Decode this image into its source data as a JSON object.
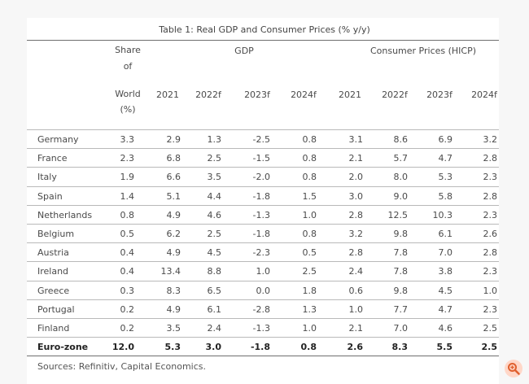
{
  "table": {
    "caption": "Table 1: Real GDP and Consumer Prices (% y/y)",
    "headers": {
      "share_line1": "Share",
      "share_line2": "of",
      "share_line3": "World",
      "share_line4": "(%)",
      "gdp_group": "GDP",
      "hicp_group": "Consumer Prices (HICP)",
      "years": [
        "2021",
        "2022f",
        "2023f",
        "2024f",
        "2021",
        "2022f",
        "2023f",
        "2024f"
      ]
    },
    "rows": [
      {
        "country": "Germany",
        "share": "3.3",
        "gdp": [
          "2.9",
          "1.3",
          "-2.5",
          "0.8"
        ],
        "hicp": [
          "3.1",
          "8.6",
          "6.9",
          "3.2"
        ]
      },
      {
        "country": "France",
        "share": "2.3",
        "gdp": [
          "6.8",
          "2.5",
          "-1.5",
          "0.8"
        ],
        "hicp": [
          "2.1",
          "5.7",
          "4.7",
          "2.8"
        ]
      },
      {
        "country": "Italy",
        "share": "1.9",
        "gdp": [
          "6.6",
          "3.5",
          "-2.0",
          "0.8"
        ],
        "hicp": [
          "2.0",
          "8.0",
          "5.3",
          "2.3"
        ]
      },
      {
        "country": "Spain",
        "share": "1.4",
        "gdp": [
          "5.1",
          "4.4",
          "-1.8",
          "1.5"
        ],
        "hicp": [
          "3.0",
          "9.0",
          "5.8",
          "2.8"
        ]
      },
      {
        "country": "Netherlands",
        "share": "0.8",
        "gdp": [
          "4.9",
          "4.6",
          "-1.3",
          "1.0"
        ],
        "hicp": [
          "2.8",
          "12.5",
          "10.3",
          "2.3"
        ]
      },
      {
        "country": "Belgium",
        "share": "0.5",
        "gdp": [
          "6.2",
          "2.5",
          "-1.8",
          "0.8"
        ],
        "hicp": [
          "3.2",
          "9.8",
          "6.1",
          "2.6"
        ]
      },
      {
        "country": "Austria",
        "share": "0.4",
        "gdp": [
          "4.9",
          "4.5",
          "-2.3",
          "0.5"
        ],
        "hicp": [
          "2.8",
          "7.8",
          "7.0",
          "2.8"
        ]
      },
      {
        "country": "Ireland",
        "share": "0.4",
        "gdp": [
          "13.4",
          "8.8",
          "1.0",
          "2.5"
        ],
        "hicp": [
          "2.4",
          "7.8",
          "3.8",
          "2.3"
        ]
      },
      {
        "country": "Greece",
        "share": "0.3",
        "gdp": [
          "8.3",
          "6.5",
          "0.0",
          "1.8"
        ],
        "hicp": [
          "0.6",
          "9.8",
          "4.5",
          "1.0"
        ]
      },
      {
        "country": "Portugal",
        "share": "0.2",
        "gdp": [
          "4.9",
          "6.1",
          "-2.8",
          "1.3"
        ],
        "hicp": [
          "1.0",
          "7.7",
          "4.7",
          "2.3"
        ]
      },
      {
        "country": "Finland",
        "share": "0.2",
        "gdp": [
          "3.5",
          "2.4",
          "-1.3",
          "1.0"
        ],
        "hicp": [
          "2.1",
          "7.0",
          "4.6",
          "2.5"
        ]
      }
    ],
    "total": {
      "country": "Euro-zone",
      "share": "12.0",
      "gdp": [
        "5.3",
        "3.0",
        "-1.8",
        "0.8"
      ],
      "hicp": [
        "2.6",
        "8.3",
        "5.5",
        "2.5"
      ]
    },
    "source": "Sources: Refinitiv, Capital Economics."
  },
  "zoom_button": {
    "icon": "zoom-in-icon"
  }
}
